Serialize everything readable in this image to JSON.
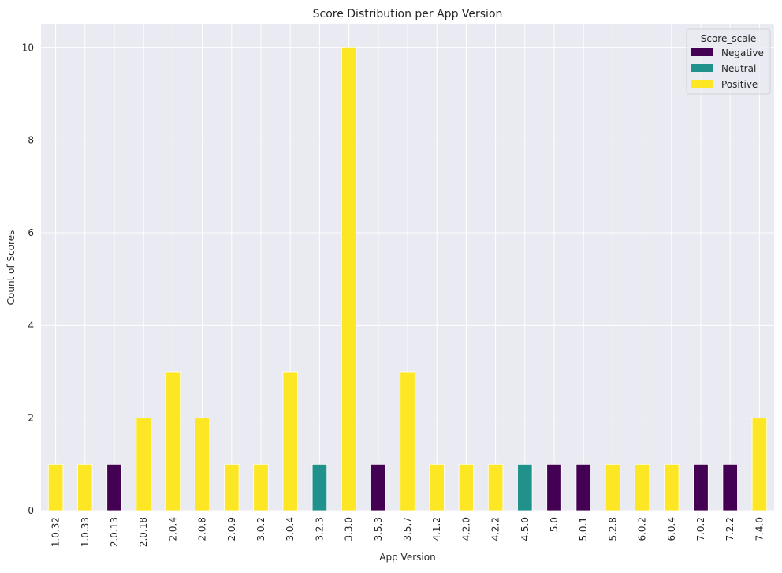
{
  "chart_data": {
    "type": "bar",
    "title": "Score Distribution per App Version",
    "xlabel": "App Version",
    "ylabel": "Count of Scores",
    "ylim": [
      0,
      10.5
    ],
    "yticks": [
      0,
      2,
      4,
      6,
      8,
      10
    ],
    "grid": true,
    "legend": {
      "title": "Score_scale",
      "placement": "top-right",
      "entries": [
        {
          "name": "Negative",
          "color": "#440154"
        },
        {
          "name": "Neutral",
          "color": "#21918c"
        },
        {
          "name": "Positive",
          "color": "#fde725"
        }
      ]
    },
    "categories": [
      "1.0.32",
      "1.0.33",
      "2.0.13",
      "2.0.18",
      "2.0.4",
      "2.0.8",
      "2.0.9",
      "3.0.2",
      "3.0.4",
      "3.2.3",
      "3.3.0",
      "3.5.3",
      "3.5.7",
      "4.1.2",
      "4.2.0",
      "4.2.2",
      "4.5.0",
      "5.0",
      "5.0.1",
      "5.2.8",
      "6.0.2",
      "6.0.4",
      "7.0.2",
      "7.2.2",
      "7.4.0"
    ],
    "series": [
      {
        "name": "Negative",
        "color": "#440154",
        "values": [
          0,
          0,
          1,
          0,
          0,
          0,
          0,
          0,
          0,
          0,
          0,
          1,
          0,
          0,
          0,
          0,
          0,
          1,
          1,
          0,
          0,
          0,
          1,
          1,
          0
        ]
      },
      {
        "name": "Neutral",
        "color": "#21918c",
        "values": [
          0,
          0,
          0,
          0,
          0,
          0,
          0,
          0,
          0,
          1,
          0,
          0,
          0,
          0,
          0,
          0,
          1,
          0,
          0,
          0,
          0,
          0,
          0,
          0,
          0
        ]
      },
      {
        "name": "Positive",
        "color": "#fde725",
        "values": [
          1,
          1,
          0,
          2,
          3,
          2,
          1,
          1,
          3,
          0,
          10,
          0,
          3,
          1,
          1,
          1,
          0,
          0,
          0,
          1,
          1,
          1,
          0,
          0,
          2
        ]
      }
    ]
  }
}
